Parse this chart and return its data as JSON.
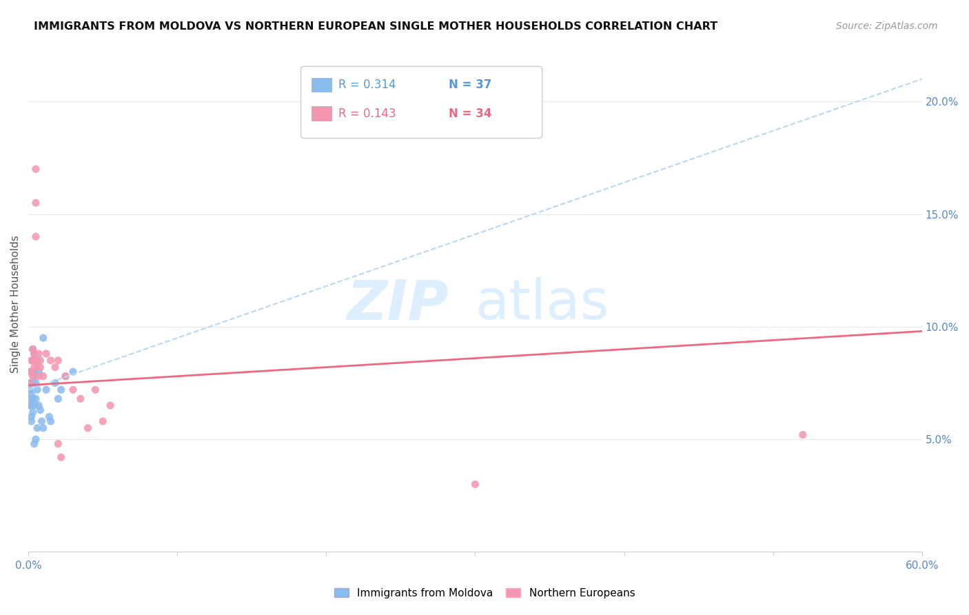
{
  "title": "IMMIGRANTS FROM MOLDOVA VS NORTHERN EUROPEAN SINGLE MOTHER HOUSEHOLDS CORRELATION CHART",
  "source": "Source: ZipAtlas.com",
  "ylabel": "Single Mother Households",
  "xlim": [
    0,
    0.6
  ],
  "ylim": [
    0,
    0.22
  ],
  "xticks": [
    0.0,
    0.1,
    0.2,
    0.3,
    0.4,
    0.5,
    0.6
  ],
  "xtick_labels_show": [
    "0.0%",
    "",
    "",
    "",
    "",
    "",
    "60.0%"
  ],
  "yticks": [
    0.05,
    0.1,
    0.15,
    0.2
  ],
  "ytick_labels": [
    "5.0%",
    "10.0%",
    "15.0%",
    "20.0%"
  ],
  "moldova_scatter_x": [
    0.001,
    0.001,
    0.001,
    0.002,
    0.002,
    0.002,
    0.002,
    0.002,
    0.003,
    0.003,
    0.003,
    0.003,
    0.003,
    0.003,
    0.004,
    0.004,
    0.004,
    0.004,
    0.005,
    0.005,
    0.005,
    0.006,
    0.006,
    0.007,
    0.007,
    0.008,
    0.009,
    0.01,
    0.01,
    0.012,
    0.014,
    0.015,
    0.018,
    0.02,
    0.022,
    0.025,
    0.03
  ],
  "moldova_scatter_y": [
    0.072,
    0.068,
    0.065,
    0.075,
    0.07,
    0.065,
    0.06,
    0.058,
    0.09,
    0.085,
    0.08,
    0.075,
    0.068,
    0.062,
    0.088,
    0.078,
    0.065,
    0.048,
    0.075,
    0.068,
    0.05,
    0.072,
    0.055,
    0.08,
    0.065,
    0.063,
    0.058,
    0.095,
    0.055,
    0.072,
    0.06,
    0.058,
    0.075,
    0.068,
    0.072,
    0.078,
    0.08
  ],
  "northern_scatter_x": [
    0.001,
    0.001,
    0.002,
    0.002,
    0.003,
    0.003,
    0.003,
    0.004,
    0.004,
    0.005,
    0.005,
    0.005,
    0.006,
    0.006,
    0.007,
    0.007,
    0.008,
    0.008,
    0.01,
    0.012,
    0.015,
    0.018,
    0.02,
    0.025,
    0.03,
    0.035,
    0.04,
    0.045,
    0.05,
    0.055,
    0.02,
    0.022,
    0.52,
    0.3
  ],
  "northern_scatter_y": [
    0.08,
    0.075,
    0.085,
    0.08,
    0.09,
    0.085,
    0.078,
    0.088,
    0.082,
    0.17,
    0.155,
    0.14,
    0.085,
    0.082,
    0.088,
    0.078,
    0.085,
    0.082,
    0.078,
    0.088,
    0.085,
    0.082,
    0.085,
    0.078,
    0.072,
    0.068,
    0.055,
    0.072,
    0.058,
    0.065,
    0.048,
    0.042,
    0.052,
    0.03
  ],
  "moldova_line_x": [
    0.0,
    0.6
  ],
  "moldova_line_y": [
    0.072,
    0.21
  ],
  "northern_line_x": [
    0.0,
    0.6
  ],
  "northern_line_y": [
    0.074,
    0.098
  ],
  "scatter_color_moldova": "#88bbee",
  "scatter_color_northern": "#f496b0",
  "line_color_moldova": "#b8d8f0",
  "line_color_northern": "#f06880",
  "watermark_zip": "ZIP",
  "watermark_atlas": "atlas",
  "watermark_color": "#ddeeff",
  "background_color": "#ffffff",
  "grid_color": "#e8e8e8",
  "legend_r_color_1": "#5599dd",
  "legend_n_color_1": "#5599dd",
  "legend_r_color_2": "#f06880",
  "legend_n_color_2": "#f06880"
}
